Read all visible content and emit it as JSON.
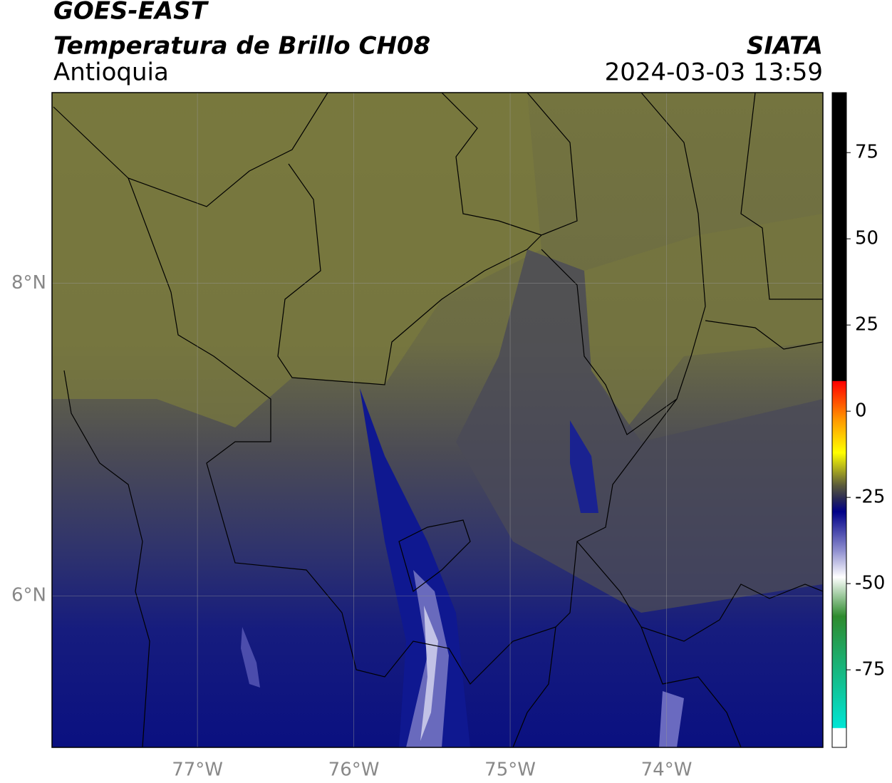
{
  "map": {
    "title": "GOES-EAST",
    "subtitle": "Temperatura de Brillo CH08",
    "region": "Antioquia",
    "source": "SIATA",
    "datetime": "2024-03-03 13:59",
    "xlim": [
      -77.93,
      -73.0
    ],
    "ylim": [
      5.03,
      9.22
    ],
    "xticks": [
      {
        "value": -77,
        "label": "77°W"
      },
      {
        "value": -76,
        "label": "76°W"
      },
      {
        "value": -75,
        "label": "75°W"
      },
      {
        "value": -74,
        "label": "74°W"
      }
    ],
    "yticks": [
      {
        "value": 6,
        "label": "6°N"
      },
      {
        "value": 8,
        "label": "8°N"
      }
    ],
    "colorbar": {
      "lim": [
        -97.5,
        92.4
      ],
      "ticks": [
        -75,
        -50,
        -25,
        0,
        25,
        50,
        75
      ]
    }
  }
}
